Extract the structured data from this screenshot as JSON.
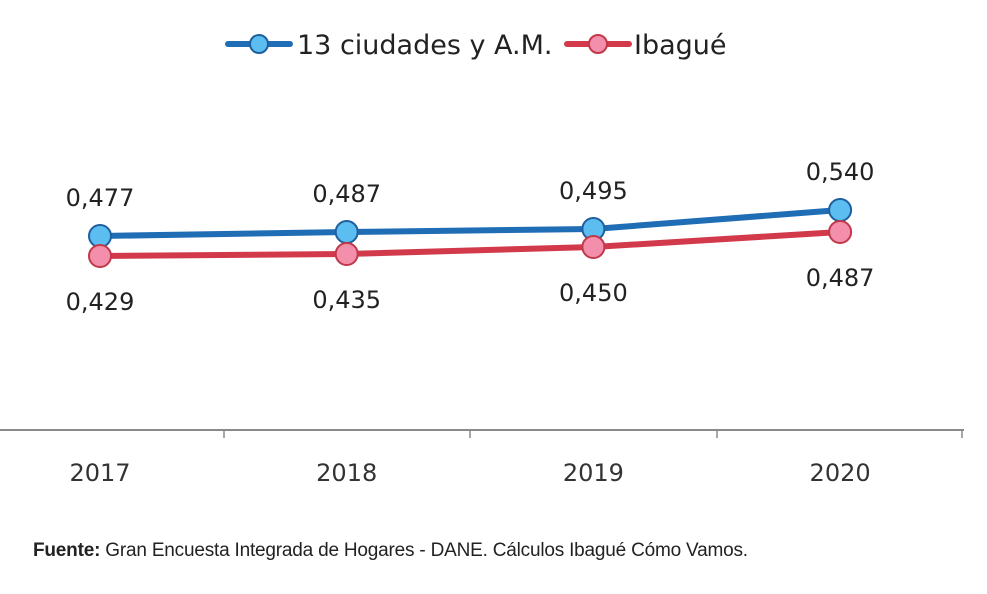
{
  "chart_data": {
    "type": "line",
    "title": "",
    "xlabel": "",
    "ylabel": "",
    "categories": [
      "2017",
      "2018",
      "2019",
      "2020"
    ],
    "series": [
      {
        "name": "13 ciudades y A.M.",
        "values": [
          0.477,
          0.487,
          0.495,
          0.54
        ],
        "labels": [
          "0,477",
          "0,487",
          "0,495",
          "0,540"
        ],
        "line_color": "#1f6db5",
        "marker_fill": "#5bbdf0",
        "marker_stroke": "#1f5f9e",
        "label_position": "above"
      },
      {
        "name": "Ibagué",
        "values": [
          0.429,
          0.435,
          0.45,
          0.487
        ],
        "labels": [
          "0,429",
          "0,435",
          "0,450",
          "0,487"
        ],
        "line_color": "#d23a4c",
        "marker_fill": "#f48fab",
        "marker_stroke": "#c0394b",
        "label_position": "below"
      }
    ],
    "legend": {
      "position": "top-center",
      "entries": [
        "13 ciudades y A.M.",
        "Ibagué"
      ]
    },
    "grid": false,
    "y_axis_visible": false
  },
  "footer": {
    "source_label": "Fuente:",
    "source_text": " Gran Encuesta Integrada de Hogares - DANE. Cálculos Ibagué Cómo Vamos."
  }
}
